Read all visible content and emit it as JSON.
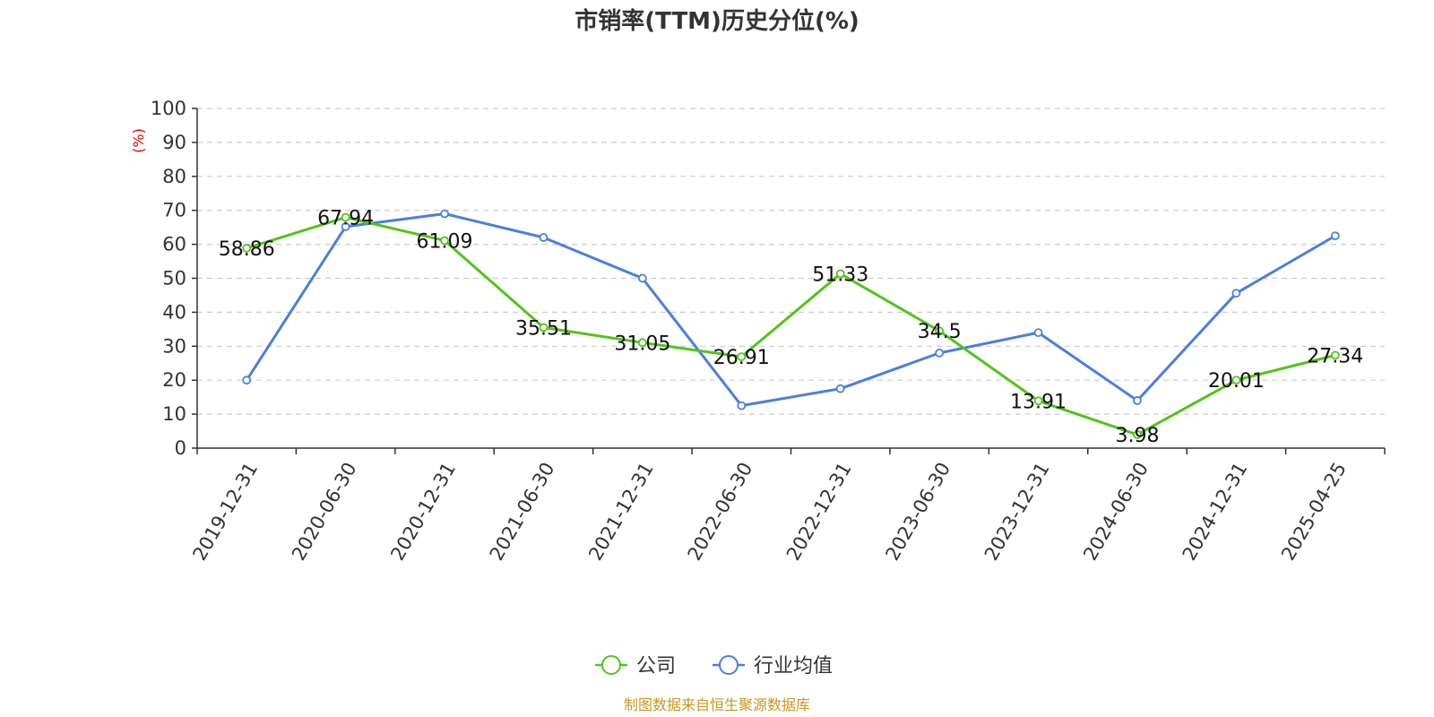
{
  "chart_data": {
    "type": "line",
    "title": "市销率(TTM)历史分位(%)",
    "ylabel": "(%)",
    "ylim": [
      0,
      100
    ],
    "yticks": [
      0,
      10,
      20,
      30,
      40,
      50,
      60,
      70,
      80,
      90,
      100
    ],
    "grid": true,
    "legend_position": "bottom",
    "categories": [
      "2019-12-31",
      "2020-06-30",
      "2020-12-31",
      "2021-06-30",
      "2021-12-31",
      "2022-06-30",
      "2022-12-31",
      "2023-06-30",
      "2023-12-31",
      "2024-06-30",
      "2024-12-31",
      "2025-04-25"
    ],
    "series": [
      {
        "name": "公司",
        "color": "#52c41a",
        "values": [
          58.86,
          67.94,
          61.09,
          35.51,
          31.05,
          26.91,
          51.33,
          34.5,
          13.91,
          3.98,
          20.01,
          27.34
        ],
        "labels": [
          "58.86",
          "67.94",
          "61.09",
          "35.51",
          "31.05",
          "26.91",
          "51.33",
          "34.5",
          "13.91",
          "3.98",
          "20.01",
          "27.34"
        ]
      },
      {
        "name": "行业均值",
        "color": "#4a7fdb",
        "values": [
          20.0,
          65.2,
          69.0,
          62.0,
          50.0,
          12.5,
          17.5,
          28.0,
          34.0,
          14.0,
          45.6,
          62.5
        ]
      }
    ]
  },
  "footer": {
    "source": "制图数据来自恒生聚源数据库"
  }
}
